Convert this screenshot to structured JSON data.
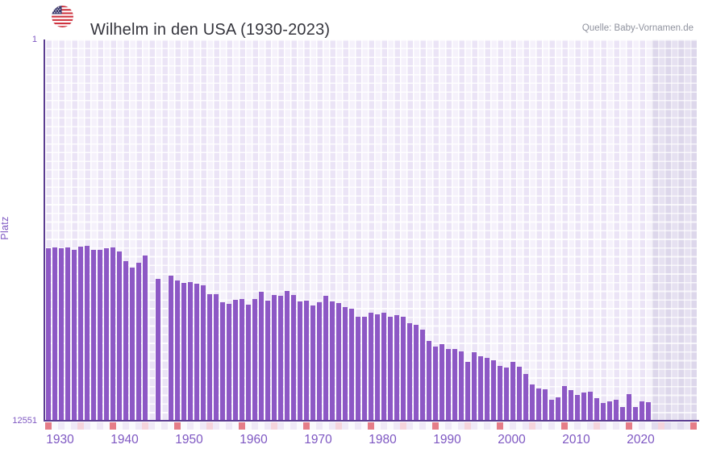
{
  "header": {
    "title": "Wilhelm in den USA (1930-2023)",
    "source": "Quelle: Baby-Vornamen.de",
    "flag_icon": "us-flag-icon"
  },
  "colors": {
    "bar": "#8d58c5",
    "axis_line": "#5b3c91",
    "tick_text": "#7e57c2",
    "title_text": "#35353d",
    "source_text": "#8f929e",
    "plot_cell_a": "#ebe4f6",
    "plot_cell_b": "#f5f1fb",
    "nodata_cell_a": "#ddd7eb",
    "nodata_cell_b": "#e6e1f1",
    "marker_dark": "#e57d88",
    "marker_light": "#f5d4dc",
    "strip_cell_a": "#efe9f7",
    "strip_cell_b": "#fafafd",
    "strip_nodata_a": "#e2dcef",
    "strip_nodata_b": "#ede9f5"
  },
  "chart_data": {
    "type": "bar",
    "title": "Wilhelm in den USA (1930-2023)",
    "ylabel": "Platz",
    "xlabel": "",
    "y_axis": {
      "scale": "log",
      "min": 1,
      "max": 12551,
      "top_label": "1",
      "bottom_label": "12551",
      "inverted": true
    },
    "x_axis": {
      "start_year": 1928,
      "end_year": 2028,
      "tick_years": [
        1930,
        1940,
        1950,
        1960,
        1970,
        1980,
        1990,
        2000,
        2010,
        2020
      ],
      "no_data_from": 2022,
      "marker_dark_years": [
        1928,
        1938,
        1948,
        1958,
        1968,
        1978,
        1988,
        1998,
        2008,
        2018,
        2028
      ],
      "marker_light_years": [
        1933,
        1943,
        1953,
        1963,
        1973,
        1983,
        1993,
        2003,
        2013,
        2023
      ]
    },
    "missing_years": [
      1944,
      1946
    ],
    "points": [
      {
        "year": 1928,
        "rank": 176
      },
      {
        "year": 1929,
        "rank": 172
      },
      {
        "year": 1930,
        "rank": 176
      },
      {
        "year": 1931,
        "rank": 172
      },
      {
        "year": 1932,
        "rank": 183
      },
      {
        "year": 1933,
        "rank": 169
      },
      {
        "year": 1934,
        "rank": 165
      },
      {
        "year": 1935,
        "rank": 183
      },
      {
        "year": 1936,
        "rank": 183
      },
      {
        "year": 1937,
        "rank": 176
      },
      {
        "year": 1938,
        "rank": 172
      },
      {
        "year": 1939,
        "rank": 190
      },
      {
        "year": 1940,
        "rank": 242
      },
      {
        "year": 1941,
        "rank": 283
      },
      {
        "year": 1942,
        "rank": 251
      },
      {
        "year": 1943,
        "rank": 210
      },
      {
        "year": 1945,
        "rank": 375
      },
      {
        "year": 1947,
        "rank": 346
      },
      {
        "year": 1948,
        "rank": 390
      },
      {
        "year": 1949,
        "rank": 414
      },
      {
        "year": 1950,
        "rank": 406
      },
      {
        "year": 1951,
        "rank": 422
      },
      {
        "year": 1952,
        "rank": 440
      },
      {
        "year": 1953,
        "rank": 547
      },
      {
        "year": 1954,
        "rank": 547
      },
      {
        "year": 1955,
        "rank": 668
      },
      {
        "year": 1956,
        "rank": 696
      },
      {
        "year": 1957,
        "rank": 630
      },
      {
        "year": 1958,
        "rank": 617
      },
      {
        "year": 1959,
        "rank": 710
      },
      {
        "year": 1960,
        "rank": 617
      },
      {
        "year": 1961,
        "rank": 516
      },
      {
        "year": 1962,
        "rank": 642
      },
      {
        "year": 1963,
        "rank": 558
      },
      {
        "year": 1964,
        "rank": 570
      },
      {
        "year": 1965,
        "rank": 505
      },
      {
        "year": 1966,
        "rank": 558
      },
      {
        "year": 1967,
        "rank": 655
      },
      {
        "year": 1968,
        "rank": 642
      },
      {
        "year": 1969,
        "rank": 724
      },
      {
        "year": 1970,
        "rank": 668
      },
      {
        "year": 1971,
        "rank": 570
      },
      {
        "year": 1972,
        "rank": 655
      },
      {
        "year": 1973,
        "rank": 682
      },
      {
        "year": 1974,
        "rank": 753
      },
      {
        "year": 1975,
        "rank": 784
      },
      {
        "year": 1976,
        "rank": 957
      },
      {
        "year": 1977,
        "rank": 957
      },
      {
        "year": 1978,
        "rank": 866
      },
      {
        "year": 1979,
        "rank": 902
      },
      {
        "year": 1980,
        "rank": 866
      },
      {
        "year": 1981,
        "rank": 957
      },
      {
        "year": 1982,
        "rank": 920
      },
      {
        "year": 1983,
        "rank": 957
      },
      {
        "year": 1984,
        "rank": 1123
      },
      {
        "year": 1985,
        "rank": 1169
      },
      {
        "year": 1986,
        "rank": 1317
      },
      {
        "year": 1987,
        "rank": 1742
      },
      {
        "year": 1988,
        "rank": 2003
      },
      {
        "year": 1989,
        "rank": 1886
      },
      {
        "year": 1990,
        "rank": 2127
      },
      {
        "year": 1991,
        "rank": 2127
      },
      {
        "year": 1992,
        "rank": 2258
      },
      {
        "year": 1993,
        "rank": 2927
      },
      {
        "year": 1994,
        "rank": 2303
      },
      {
        "year": 1995,
        "rank": 2545
      },
      {
        "year": 1996,
        "rank": 2648
      },
      {
        "year": 1997,
        "rank": 2812
      },
      {
        "year": 1998,
        "rank": 3233
      },
      {
        "year": 1999,
        "rank": 3365
      },
      {
        "year": 2000,
        "rank": 2927
      },
      {
        "year": 2001,
        "rank": 3298
      },
      {
        "year": 2002,
        "rank": 3947
      },
      {
        "year": 2003,
        "rank": 5117
      },
      {
        "year": 2004,
        "rank": 5652
      },
      {
        "year": 2005,
        "rank": 5766
      },
      {
        "year": 2006,
        "rank": 7478
      },
      {
        "year": 2007,
        "rank": 7043
      },
      {
        "year": 2008,
        "rank": 5325
      },
      {
        "year": 2009,
        "rank": 5882
      },
      {
        "year": 2010,
        "rank": 6632
      },
      {
        "year": 2011,
        "rank": 6247
      },
      {
        "year": 2012,
        "rank": 6123
      },
      {
        "year": 2013,
        "rank": 7184
      },
      {
        "year": 2014,
        "rank": 8097
      },
      {
        "year": 2015,
        "rank": 7782
      },
      {
        "year": 2016,
        "rank": 7478
      },
      {
        "year": 2017,
        "rank": 8947
      },
      {
        "year": 2018,
        "rank": 6501
      },
      {
        "year": 2019,
        "rank": 8947
      },
      {
        "year": 2020,
        "rank": 7782
      },
      {
        "year": 2021,
        "rank": 7938
      }
    ]
  }
}
